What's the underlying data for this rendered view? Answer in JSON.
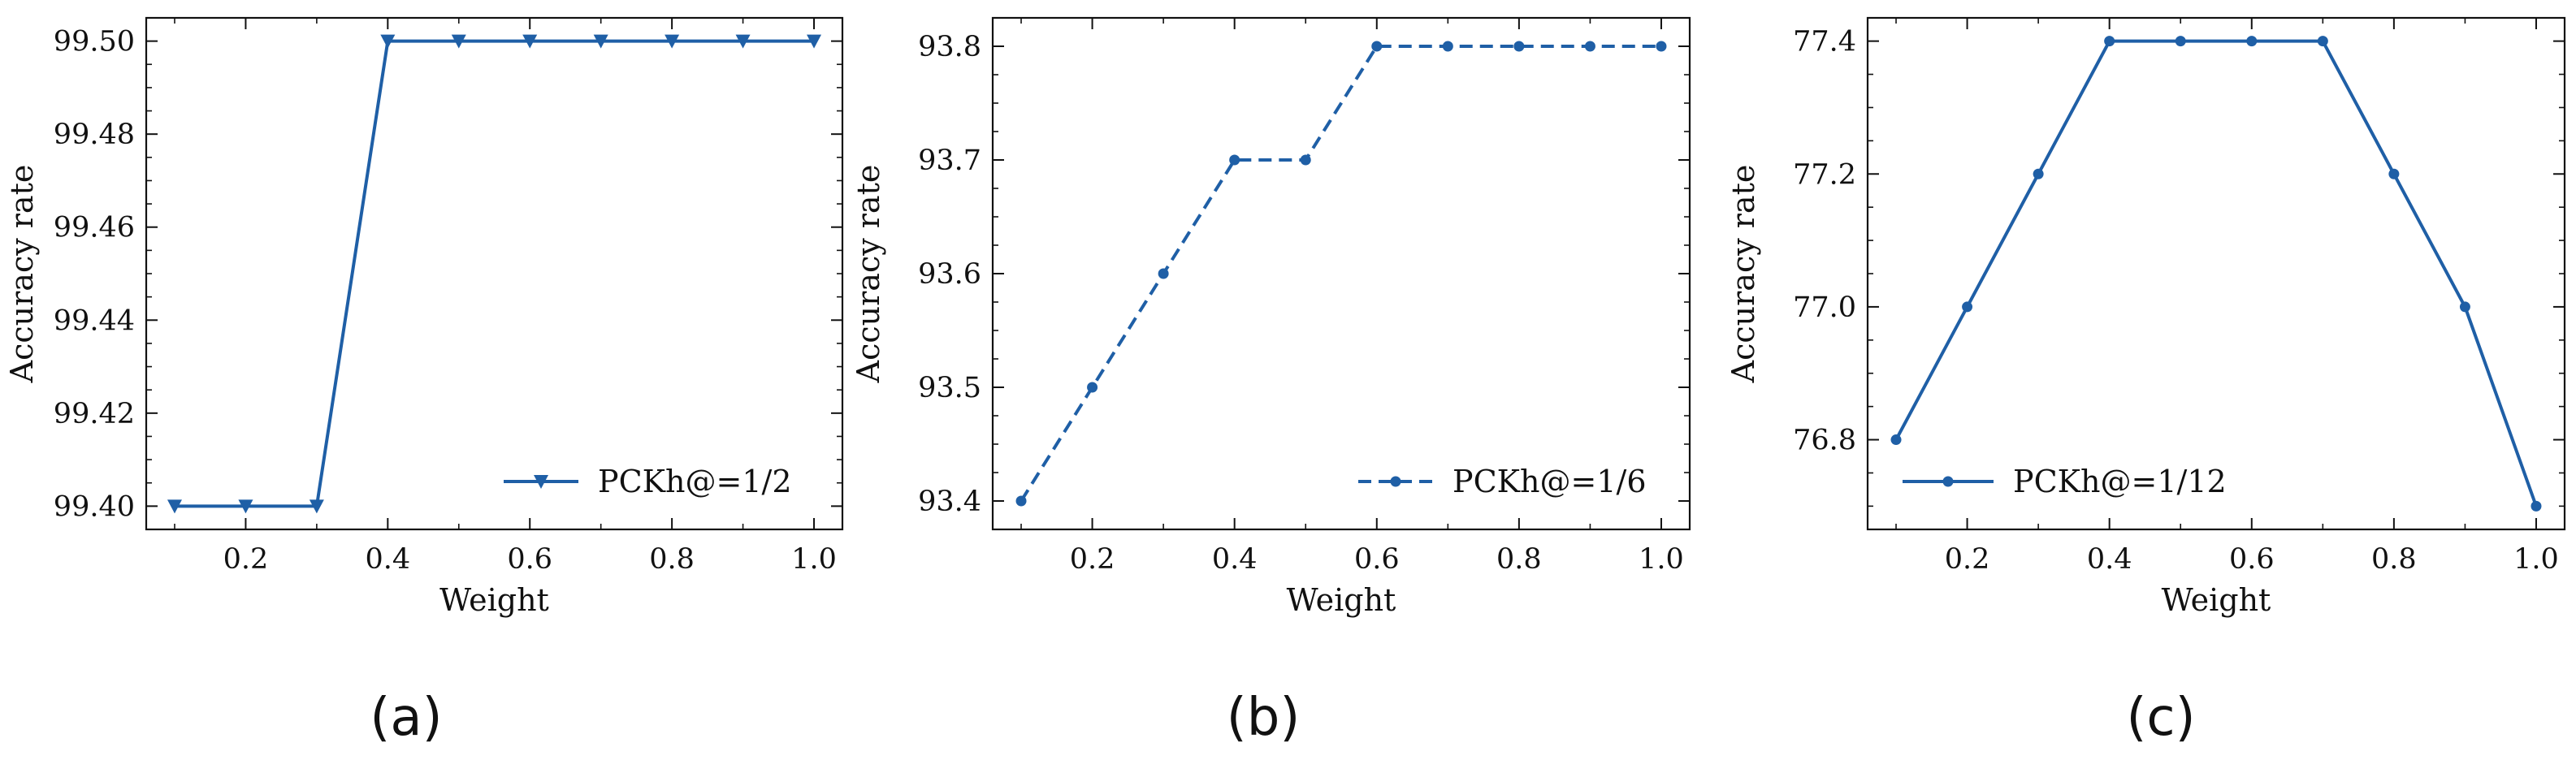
{
  "chart_data": [
    {
      "type": "line",
      "caption": "(a)",
      "xlabel": "Weight",
      "ylabel": "Accuracy rate",
      "xlim": [
        0.06,
        1.04
      ],
      "ylim": [
        99.395,
        99.505
      ],
      "xticks": [
        0.2,
        0.4,
        0.6,
        0.8,
        1.0
      ],
      "xtick_labels": [
        "0.2",
        "0.4",
        "0.6",
        "0.8",
        "1.0"
      ],
      "yticks": [
        99.4,
        99.42,
        99.44,
        99.46,
        99.48,
        99.5
      ],
      "ytick_labels": [
        "99.40",
        "99.42",
        "99.44",
        "99.46",
        "99.48",
        "99.50"
      ],
      "series": [
        {
          "name": "PCKh@=1/2",
          "marker": "triangle-down",
          "line_style": "solid",
          "x": [
            0.1,
            0.2,
            0.3,
            0.4,
            0.5,
            0.6,
            0.7,
            0.8,
            0.9,
            1.0
          ],
          "values": [
            99.4,
            99.4,
            99.4,
            99.5,
            99.5,
            99.5,
            99.5,
            99.5,
            99.5,
            99.5
          ]
        }
      ],
      "legend_position": "bottom-right"
    },
    {
      "type": "line",
      "caption": "(b)",
      "xlabel": "Weight",
      "ylabel": "Accuracy rate",
      "xlim": [
        0.06,
        1.04
      ],
      "ylim": [
        93.375,
        93.825
      ],
      "xticks": [
        0.2,
        0.4,
        0.6,
        0.8,
        1.0
      ],
      "xtick_labels": [
        "0.2",
        "0.4",
        "0.6",
        "0.8",
        "1.0"
      ],
      "yticks": [
        93.4,
        93.5,
        93.6,
        93.7,
        93.8
      ],
      "ytick_labels": [
        "93.4",
        "93.5",
        "93.6",
        "93.7",
        "93.8"
      ],
      "series": [
        {
          "name": "PCKh@=1/6",
          "marker": "circle",
          "line_style": "dashed",
          "x": [
            0.1,
            0.2,
            0.3,
            0.4,
            0.5,
            0.6,
            0.7,
            0.8,
            0.9,
            1.0
          ],
          "values": [
            93.4,
            93.5,
            93.6,
            93.7,
            93.7,
            93.8,
            93.8,
            93.8,
            93.8,
            93.8
          ]
        }
      ],
      "legend_position": "bottom-right"
    },
    {
      "type": "line",
      "caption": "(c)",
      "xlabel": "Weight",
      "ylabel": "Accuracy rate",
      "xlim": [
        0.06,
        1.04
      ],
      "ylim": [
        76.665,
        77.435
      ],
      "xticks": [
        0.2,
        0.4,
        0.6,
        0.8,
        1.0
      ],
      "xtick_labels": [
        "0.2",
        "0.4",
        "0.6",
        "0.8",
        "1.0"
      ],
      "yticks": [
        76.8,
        77.0,
        77.2,
        77.4
      ],
      "ytick_labels": [
        "76.8",
        "77.0",
        "77.2",
        "77.4"
      ],
      "series": [
        {
          "name": "PCKh@=1/12",
          "marker": "circle",
          "line_style": "solid",
          "x": [
            0.1,
            0.2,
            0.3,
            0.4,
            0.5,
            0.6,
            0.7,
            0.8,
            0.9,
            1.0
          ],
          "values": [
            76.8,
            77.0,
            77.2,
            77.4,
            77.4,
            77.4,
            77.4,
            77.2,
            77.0,
            76.7
          ]
        }
      ],
      "legend_position": "bottom-left"
    }
  ],
  "colors": {
    "series": "#1f5fa6",
    "axis": "#111111"
  }
}
